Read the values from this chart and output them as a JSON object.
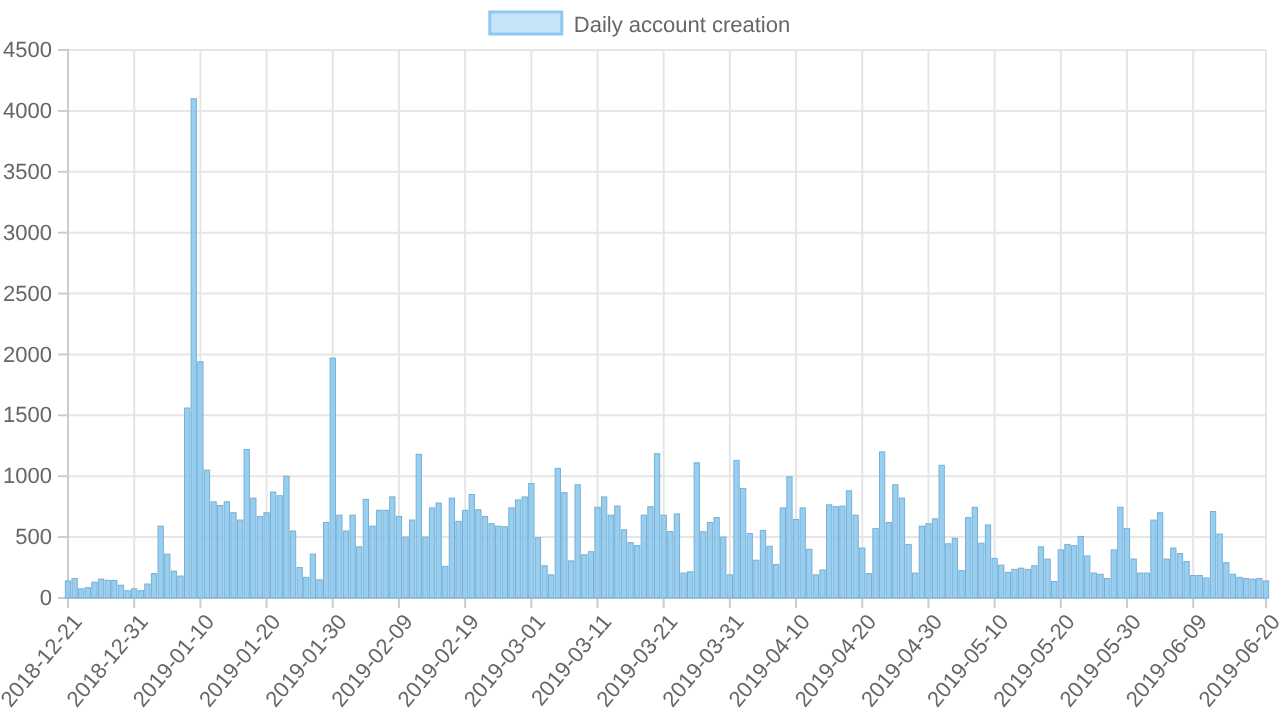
{
  "chart_data": {
    "type": "bar",
    "legend": "top",
    "grid": true,
    "x": [
      "2018-12-21",
      "2018-12-22",
      "2018-12-23",
      "2018-12-24",
      "2018-12-25",
      "2018-12-26",
      "2018-12-27",
      "2018-12-28",
      "2018-12-29",
      "2018-12-30",
      "2018-12-31",
      "2019-01-01",
      "2019-01-02",
      "2019-01-03",
      "2019-01-04",
      "2019-01-05",
      "2019-01-06",
      "2019-01-07",
      "2019-01-08",
      "2019-01-09",
      "2019-01-10",
      "2019-01-11",
      "2019-01-12",
      "2019-01-13",
      "2019-01-14",
      "2019-01-15",
      "2019-01-16",
      "2019-01-17",
      "2019-01-18",
      "2019-01-19",
      "2019-01-20",
      "2019-01-21",
      "2019-01-22",
      "2019-01-23",
      "2019-01-24",
      "2019-01-25",
      "2019-01-26",
      "2019-01-27",
      "2019-01-28",
      "2019-01-29",
      "2019-01-30",
      "2019-01-31",
      "2019-02-01",
      "2019-02-02",
      "2019-02-03",
      "2019-02-04",
      "2019-02-05",
      "2019-02-06",
      "2019-02-07",
      "2019-02-08",
      "2019-02-09",
      "2019-02-10",
      "2019-02-11",
      "2019-02-12",
      "2019-02-13",
      "2019-02-14",
      "2019-02-15",
      "2019-02-16",
      "2019-02-17",
      "2019-02-18",
      "2019-02-19",
      "2019-02-20",
      "2019-02-21",
      "2019-02-22",
      "2019-02-23",
      "2019-02-24",
      "2019-02-25",
      "2019-02-26",
      "2019-02-27",
      "2019-02-28",
      "2019-03-01",
      "2019-03-02",
      "2019-03-03",
      "2019-03-04",
      "2019-03-05",
      "2019-03-06",
      "2019-03-07",
      "2019-03-08",
      "2019-03-09",
      "2019-03-10",
      "2019-03-11",
      "2019-03-12",
      "2019-03-13",
      "2019-03-14",
      "2019-03-15",
      "2019-03-16",
      "2019-03-17",
      "2019-03-18",
      "2019-03-19",
      "2019-03-20",
      "2019-03-21",
      "2019-03-22",
      "2019-03-23",
      "2019-03-24",
      "2019-03-25",
      "2019-03-26",
      "2019-03-27",
      "2019-03-28",
      "2019-03-29",
      "2019-03-30",
      "2019-03-31",
      "2019-04-01",
      "2019-04-02",
      "2019-04-03",
      "2019-04-04",
      "2019-04-05",
      "2019-04-06",
      "2019-04-07",
      "2019-04-08",
      "2019-04-09",
      "2019-04-10",
      "2019-04-11",
      "2019-04-12",
      "2019-04-13",
      "2019-04-14",
      "2019-04-15",
      "2019-04-16",
      "2019-04-17",
      "2019-04-18",
      "2019-04-19",
      "2019-04-20",
      "2019-04-21",
      "2019-04-22",
      "2019-04-23",
      "2019-04-24",
      "2019-04-25",
      "2019-04-26",
      "2019-04-27",
      "2019-04-28",
      "2019-04-29",
      "2019-04-30",
      "2019-05-01",
      "2019-05-02",
      "2019-05-03",
      "2019-05-04",
      "2019-05-05",
      "2019-05-06",
      "2019-05-07",
      "2019-05-08",
      "2019-05-09",
      "2019-05-10",
      "2019-05-11",
      "2019-05-12",
      "2019-05-13",
      "2019-05-14",
      "2019-05-15",
      "2019-05-16",
      "2019-05-17",
      "2019-05-18",
      "2019-05-19",
      "2019-05-20",
      "2019-05-21",
      "2019-05-22",
      "2019-05-23",
      "2019-05-24",
      "2019-05-25",
      "2019-05-26",
      "2019-05-27",
      "2019-05-28",
      "2019-05-29",
      "2019-05-30",
      "2019-05-31",
      "2019-06-01",
      "2019-06-02",
      "2019-06-03",
      "2019-06-04",
      "2019-06-05",
      "2019-06-06",
      "2019-06-07",
      "2019-06-08",
      "2019-06-09",
      "2019-06-10",
      "2019-06-11",
      "2019-06-12",
      "2019-06-13",
      "2019-06-14",
      "2019-06-15",
      "2019-06-16",
      "2019-06-17",
      "2019-06-18",
      "2019-06-19",
      "2019-06-20"
    ],
    "series": [
      {
        "name": "Daily account creation",
        "color": "#8ccaf2",
        "values": [
          140,
          160,
          75,
          85,
          130,
          155,
          145,
          145,
          105,
          60,
          75,
          60,
          115,
          200,
          590,
          360,
          220,
          180,
          1560,
          4100,
          1940,
          1050,
          790,
          760,
          790,
          700,
          640,
          1220,
          820,
          670,
          700,
          870,
          840,
          1000,
          550,
          250,
          170,
          360,
          150,
          620,
          1970,
          680,
          550,
          680,
          420,
          810,
          590,
          720,
          720,
          830,
          670,
          500,
          640,
          1180,
          500,
          740,
          780,
          260,
          820,
          630,
          720,
          850,
          725,
          670,
          610,
          590,
          585,
          740,
          805,
          830,
          940,
          495,
          265,
          190,
          1065,
          865,
          305,
          930,
          355,
          380,
          745,
          830,
          680,
          755,
          560,
          455,
          430,
          680,
          750,
          1185,
          680,
          545,
          690,
          205,
          215,
          1110,
          545,
          620,
          660,
          500,
          190,
          1130,
          900,
          530,
          310,
          555,
          425,
          275,
          740,
          995,
          645,
          740,
          400,
          190,
          230,
          765,
          750,
          755,
          880,
          680,
          410,
          200,
          570,
          1200,
          620,
          930,
          820,
          440,
          205,
          590,
          610,
          650,
          1090,
          445,
          490,
          225,
          660,
          745,
          450,
          600,
          325,
          270,
          210,
          235,
          245,
          235,
          265,
          420,
          320,
          135,
          395,
          440,
          430,
          505,
          345,
          205,
          195,
          160,
          395,
          745,
          570,
          320,
          205,
          205,
          640,
          700,
          320,
          410,
          365,
          300,
          185,
          185,
          165,
          710,
          525,
          290,
          195,
          170,
          160,
          155,
          160,
          140
        ]
      }
    ],
    "xlim": [
      "2018-12-21",
      "2019-06-20"
    ],
    "xticks": [
      "2018-12-21",
      "2018-12-31",
      "2019-01-10",
      "2019-01-20",
      "2019-01-30",
      "2019-02-09",
      "2019-02-19",
      "2019-03-01",
      "2019-03-11",
      "2019-03-21",
      "2019-03-31",
      "2019-04-10",
      "2019-04-20",
      "2019-04-30",
      "2019-05-10",
      "2019-05-20",
      "2019-05-30",
      "2019-06-09",
      "2019-06-20"
    ],
    "ylim": [
      0,
      4500
    ],
    "yticks": [
      0,
      500,
      1000,
      1500,
      2000,
      2500,
      3000,
      3500,
      4000,
      4500
    ]
  }
}
